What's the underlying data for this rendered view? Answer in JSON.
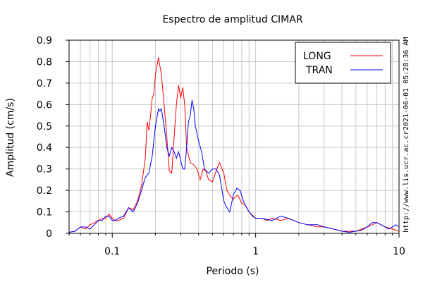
{
  "chart_data": {
    "type": "line",
    "title": "Espectro de amplitud CIMAR",
    "xlabel": "Periodo (s)",
    "ylabel": "Amplitud (cm/s)",
    "x_scale": "log",
    "xlim": [
      0.05,
      10
    ],
    "ylim": [
      0,
      0.9
    ],
    "grid": true,
    "legend_position": "top-right",
    "x_ticks": [
      {
        "value": 0.1,
        "label": "0.1"
      },
      {
        "value": 1,
        "label": "1"
      },
      {
        "value": 10,
        "label": "10"
      }
    ],
    "y_ticks": [
      {
        "value": 0,
        "label": "0"
      },
      {
        "value": 0.1,
        "label": "0.1"
      },
      {
        "value": 0.2,
        "label": "0.2"
      },
      {
        "value": 0.3,
        "label": "0.3"
      },
      {
        "value": 0.4,
        "label": "0.4"
      },
      {
        "value": 0.5,
        "label": "0.5"
      },
      {
        "value": 0.6,
        "label": "0.6"
      },
      {
        "value": 0.7,
        "label": "0.7"
      },
      {
        "value": 0.8,
        "label": "0.8"
      },
      {
        "value": 0.9,
        "label": "0.9"
      }
    ],
    "series": [
      {
        "name": "LONG",
        "color": "#ff0000",
        "points": [
          [
            0.05,
            0.005
          ],
          [
            0.055,
            0.01
          ],
          [
            0.06,
            0.03
          ],
          [
            0.065,
            0.02
          ],
          [
            0.07,
            0.04
          ],
          [
            0.075,
            0.05
          ],
          [
            0.08,
            0.06
          ],
          [
            0.085,
            0.07
          ],
          [
            0.09,
            0.07
          ],
          [
            0.095,
            0.09
          ],
          [
            0.1,
            0.07
          ],
          [
            0.105,
            0.06
          ],
          [
            0.11,
            0.06
          ],
          [
            0.12,
            0.07
          ],
          [
            0.13,
            0.12
          ],
          [
            0.14,
            0.11
          ],
          [
            0.15,
            0.15
          ],
          [
            0.16,
            0.22
          ],
          [
            0.17,
            0.35
          ],
          [
            0.175,
            0.52
          ],
          [
            0.18,
            0.48
          ],
          [
            0.185,
            0.55
          ],
          [
            0.19,
            0.63
          ],
          [
            0.195,
            0.65
          ],
          [
            0.2,
            0.74
          ],
          [
            0.205,
            0.78
          ],
          [
            0.21,
            0.82
          ],
          [
            0.215,
            0.78
          ],
          [
            0.22,
            0.74
          ],
          [
            0.23,
            0.6
          ],
          [
            0.24,
            0.45
          ],
          [
            0.25,
            0.29
          ],
          [
            0.26,
            0.28
          ],
          [
            0.27,
            0.45
          ],
          [
            0.28,
            0.6
          ],
          [
            0.29,
            0.69
          ],
          [
            0.3,
            0.63
          ],
          [
            0.31,
            0.68
          ],
          [
            0.32,
            0.6
          ],
          [
            0.33,
            0.4
          ],
          [
            0.35,
            0.33
          ],
          [
            0.37,
            0.32
          ],
          [
            0.39,
            0.3
          ],
          [
            0.41,
            0.25
          ],
          [
            0.43,
            0.3
          ],
          [
            0.45,
            0.29
          ],
          [
            0.47,
            0.25
          ],
          [
            0.5,
            0.24
          ],
          [
            0.53,
            0.29
          ],
          [
            0.56,
            0.33
          ],
          [
            0.6,
            0.28
          ],
          [
            0.63,
            0.2
          ],
          [
            0.67,
            0.17
          ],
          [
            0.7,
            0.16
          ],
          [
            0.75,
            0.18
          ],
          [
            0.8,
            0.14
          ],
          [
            0.85,
            0.13
          ],
          [
            0.9,
            0.1
          ],
          [
            1.0,
            0.07
          ],
          [
            1.1,
            0.07
          ],
          [
            1.2,
            0.06
          ],
          [
            1.3,
            0.07
          ],
          [
            1.5,
            0.06
          ],
          [
            1.7,
            0.07
          ],
          [
            2.0,
            0.05
          ],
          [
            2.3,
            0.04
          ],
          [
            2.7,
            0.03
          ],
          [
            3.0,
            0.03
          ],
          [
            3.5,
            0.02
          ],
          [
            4.0,
            0.01
          ],
          [
            4.5,
            0.01
          ],
          [
            5.0,
            0.01
          ],
          [
            5.5,
            0.02
          ],
          [
            6.0,
            0.03
          ],
          [
            6.5,
            0.04
          ],
          [
            7.0,
            0.05
          ],
          [
            7.5,
            0.04
          ],
          [
            8.0,
            0.03
          ],
          [
            9.0,
            0.02
          ],
          [
            10.0,
            0.01
          ]
        ]
      },
      {
        "name": "TRAN",
        "color": "#0000ff",
        "points": [
          [
            0.05,
            0.005
          ],
          [
            0.055,
            0.01
          ],
          [
            0.06,
            0.03
          ],
          [
            0.065,
            0.03
          ],
          [
            0.07,
            0.02
          ],
          [
            0.075,
            0.04
          ],
          [
            0.08,
            0.06
          ],
          [
            0.085,
            0.06
          ],
          [
            0.09,
            0.08
          ],
          [
            0.095,
            0.08
          ],
          [
            0.1,
            0.06
          ],
          [
            0.105,
            0.06
          ],
          [
            0.11,
            0.07
          ],
          [
            0.12,
            0.08
          ],
          [
            0.13,
            0.12
          ],
          [
            0.14,
            0.1
          ],
          [
            0.15,
            0.14
          ],
          [
            0.16,
            0.2
          ],
          [
            0.17,
            0.26
          ],
          [
            0.18,
            0.28
          ],
          [
            0.19,
            0.36
          ],
          [
            0.2,
            0.5
          ],
          [
            0.21,
            0.58
          ],
          [
            0.215,
            0.57
          ],
          [
            0.22,
            0.58
          ],
          [
            0.23,
            0.5
          ],
          [
            0.24,
            0.4
          ],
          [
            0.25,
            0.36
          ],
          [
            0.26,
            0.4
          ],
          [
            0.27,
            0.38
          ],
          [
            0.28,
            0.35
          ],
          [
            0.29,
            0.38
          ],
          [
            0.3,
            0.34
          ],
          [
            0.31,
            0.3
          ],
          [
            0.32,
            0.3
          ],
          [
            0.33,
            0.4
          ],
          [
            0.34,
            0.52
          ],
          [
            0.35,
            0.55
          ],
          [
            0.36,
            0.62
          ],
          [
            0.37,
            0.58
          ],
          [
            0.38,
            0.5
          ],
          [
            0.4,
            0.43
          ],
          [
            0.42,
            0.38
          ],
          [
            0.44,
            0.3
          ],
          [
            0.47,
            0.28
          ],
          [
            0.5,
            0.3
          ],
          [
            0.53,
            0.3
          ],
          [
            0.56,
            0.27
          ],
          [
            0.6,
            0.15
          ],
          [
            0.63,
            0.12
          ],
          [
            0.66,
            0.1
          ],
          [
            0.7,
            0.18
          ],
          [
            0.74,
            0.21
          ],
          [
            0.78,
            0.2
          ],
          [
            0.82,
            0.15
          ],
          [
            0.88,
            0.11
          ],
          [
            0.95,
            0.08
          ],
          [
            1.0,
            0.07
          ],
          [
            1.1,
            0.07
          ],
          [
            1.3,
            0.06
          ],
          [
            1.5,
            0.08
          ],
          [
            1.7,
            0.07
          ],
          [
            2.0,
            0.05
          ],
          [
            2.3,
            0.04
          ],
          [
            2.7,
            0.04
          ],
          [
            3.0,
            0.03
          ],
          [
            3.5,
            0.02
          ],
          [
            4.0,
            0.01
          ],
          [
            4.5,
            0.005
          ],
          [
            5.0,
            0.01
          ],
          [
            5.5,
            0.015
          ],
          [
            6.0,
            0.03
          ],
          [
            6.5,
            0.05
          ],
          [
            7.0,
            0.05
          ],
          [
            7.5,
            0.04
          ],
          [
            8.0,
            0.03
          ],
          [
            8.5,
            0.02
          ],
          [
            9.0,
            0.03
          ],
          [
            9.5,
            0.04
          ],
          [
            10.0,
            0.03
          ]
        ]
      }
    ]
  },
  "side_labels": {
    "timestamp": "2021-06-01 05:28:36 AM",
    "url": "http://www.lis.ucr.ac.cr"
  }
}
